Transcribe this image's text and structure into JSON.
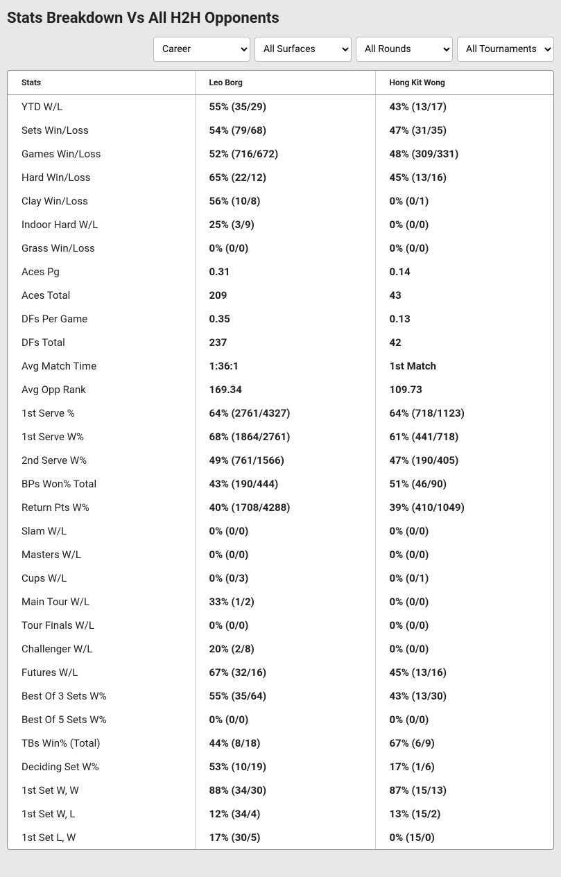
{
  "title": "Stats Breakdown Vs All H2H Opponents",
  "filters": {
    "career": {
      "selected": "Career",
      "options": [
        "Career"
      ]
    },
    "surfaces": {
      "selected": "All Surfaces",
      "options": [
        "All Surfaces"
      ]
    },
    "rounds": {
      "selected": "All Rounds",
      "options": [
        "All Rounds"
      ]
    },
    "tournaments": {
      "selected": "All Tournaments",
      "options": [
        "All Tournaments"
      ]
    }
  },
  "columns": [
    "Stats",
    "Leo Borg",
    "Hong Kit Wong"
  ],
  "rows": [
    [
      "YTD W/L",
      "55% (35/29)",
      "43% (13/17)"
    ],
    [
      "Sets Win/Loss",
      "54% (79/68)",
      "47% (31/35)"
    ],
    [
      "Games Win/Loss",
      "52% (716/672)",
      "48% (309/331)"
    ],
    [
      "Hard Win/Loss",
      "65% (22/12)",
      "45% (13/16)"
    ],
    [
      "Clay Win/Loss",
      "56% (10/8)",
      "0% (0/1)"
    ],
    [
      "Indoor Hard W/L",
      "25% (3/9)",
      "0% (0/0)"
    ],
    [
      "Grass Win/Loss",
      "0% (0/0)",
      "0% (0/0)"
    ],
    [
      "Aces Pg",
      "0.31",
      "0.14"
    ],
    [
      "Aces Total",
      "209",
      "43"
    ],
    [
      "DFs Per Game",
      "0.35",
      "0.13"
    ],
    [
      "DFs Total",
      "237",
      "42"
    ],
    [
      "Avg Match Time",
      "1:36:1",
      "1st Match"
    ],
    [
      "Avg Opp Rank",
      "169.34",
      "109.73"
    ],
    [
      "1st Serve %",
      "64% (2761/4327)",
      "64% (718/1123)"
    ],
    [
      "1st Serve W%",
      "68% (1864/2761)",
      "61% (441/718)"
    ],
    [
      "2nd Serve W%",
      "49% (761/1566)",
      "47% (190/405)"
    ],
    [
      "BPs Won% Total",
      "43% (190/444)",
      "51% (46/90)"
    ],
    [
      "Return Pts W%",
      "40% (1708/4288)",
      "39% (410/1049)"
    ],
    [
      "Slam W/L",
      "0% (0/0)",
      "0% (0/0)"
    ],
    [
      "Masters W/L",
      "0% (0/0)",
      "0% (0/0)"
    ],
    [
      "Cups W/L",
      "0% (0/3)",
      "0% (0/1)"
    ],
    [
      "Main Tour W/L",
      "33% (1/2)",
      "0% (0/0)"
    ],
    [
      "Tour Finals W/L",
      "0% (0/0)",
      "0% (0/0)"
    ],
    [
      "Challenger W/L",
      "20% (2/8)",
      "0% (0/0)"
    ],
    [
      "Futures W/L",
      "67% (32/16)",
      "45% (13/16)"
    ],
    [
      "Best Of 3 Sets W%",
      "55% (35/64)",
      "43% (13/30)"
    ],
    [
      "Best Of 5 Sets W%",
      "0% (0/0)",
      "0% (0/0)"
    ],
    [
      "TBs Win% (Total)",
      "44% (8/18)",
      "67% (6/9)"
    ],
    [
      "Deciding Set W%",
      "53% (10/19)",
      "17% (1/6)"
    ],
    [
      "1st Set W, W",
      "88% (34/30)",
      "87% (15/13)"
    ],
    [
      "1st Set W, L",
      "12% (34/4)",
      "13% (15/2)"
    ],
    [
      "1st Set L, W",
      "17% (30/5)",
      "0% (15/0)"
    ]
  ],
  "style": {
    "page_bg": "#e8e8e8",
    "table_border": "#888888",
    "col_divider": "#cccccc",
    "header_border": "#aaaaaa",
    "text_color": "#222222",
    "header_fontsize": 12,
    "body_fontsize": 15,
    "title_fontsize": 22
  }
}
